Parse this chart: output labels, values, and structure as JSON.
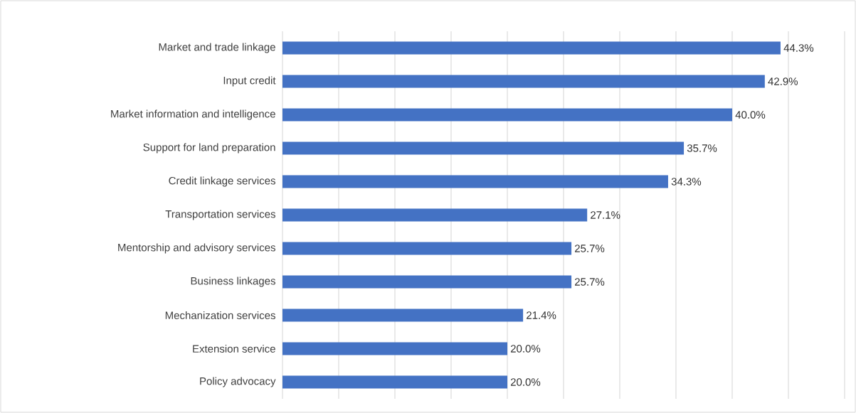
{
  "chart_data": {
    "type": "bar",
    "orientation": "horizontal",
    "categories": [
      "Market and trade linkage",
      "Input credit",
      "Market information and intelligence",
      "Support for land preparation",
      "Credit linkage services",
      "Transportation services",
      "Mentorship and advisory services",
      "Business linkages",
      "Mechanization services",
      "Extension service",
      "Policy advocacy"
    ],
    "values": [
      44.3,
      42.9,
      40.0,
      35.7,
      34.3,
      27.1,
      25.7,
      25.7,
      21.4,
      20.0,
      20.0
    ],
    "value_labels": [
      "44.3%",
      "42.9%",
      "40.0%",
      "35.7%",
      "34.3%",
      "27.1%",
      "25.7%",
      "25.7%",
      "21.4%",
      "20.0%",
      "20.0%"
    ],
    "color": "#4472c4",
    "xlim": [
      0,
      50
    ],
    "xticks": [
      {
        "value": 0,
        "label": null
      },
      {
        "value": 5,
        "label": null
      },
      {
        "value": 10,
        "label": null
      },
      {
        "value": 15,
        "label": null
      },
      {
        "value": 20,
        "label": null
      },
      {
        "value": 25,
        "label": null
      },
      {
        "value": 30,
        "label": null
      },
      {
        "value": 35,
        "label": null
      },
      {
        "value": 40,
        "label": null
      },
      {
        "value": 45,
        "label": null
      },
      {
        "value": 50,
        "label": null
      }
    ],
    "grid": "x",
    "tick_labels": "y"
  }
}
